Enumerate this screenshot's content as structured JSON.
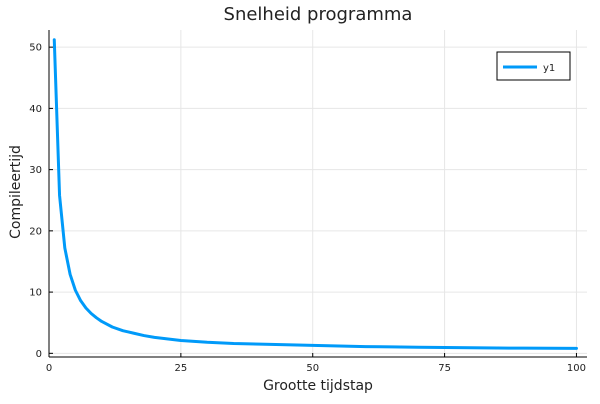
{
  "chart_data": {
    "type": "line",
    "title": "Snelheid programma",
    "xlabel": "Grootte tijdstap",
    "ylabel": "Compileertijd",
    "xlim": [
      0,
      102
    ],
    "ylim": [
      -0.6,
      52.8
    ],
    "xticks": [
      0,
      25,
      50,
      75,
      100
    ],
    "yticks": [
      0,
      10,
      20,
      30,
      40,
      50
    ],
    "grid": true,
    "legend_position": "top-right",
    "series": [
      {
        "name": "y1",
        "color": "#009af9",
        "x": [
          1,
          2,
          3,
          4,
          5,
          6,
          7,
          8,
          9,
          10,
          12,
          14,
          16,
          18,
          20,
          25,
          30,
          35,
          40,
          45,
          50,
          55,
          60,
          65,
          70,
          75,
          80,
          85,
          90,
          95,
          100
        ],
        "y": [
          51.2,
          25.8,
          17.2,
          12.9,
          10.3,
          8.6,
          7.4,
          6.5,
          5.8,
          5.2,
          4.3,
          3.7,
          3.3,
          2.9,
          2.6,
          2.1,
          1.8,
          1.6,
          1.5,
          1.4,
          1.3,
          1.2,
          1.1,
          1.05,
          1.0,
          0.95,
          0.9,
          0.87,
          0.84,
          0.82,
          0.8
        ]
      }
    ]
  }
}
